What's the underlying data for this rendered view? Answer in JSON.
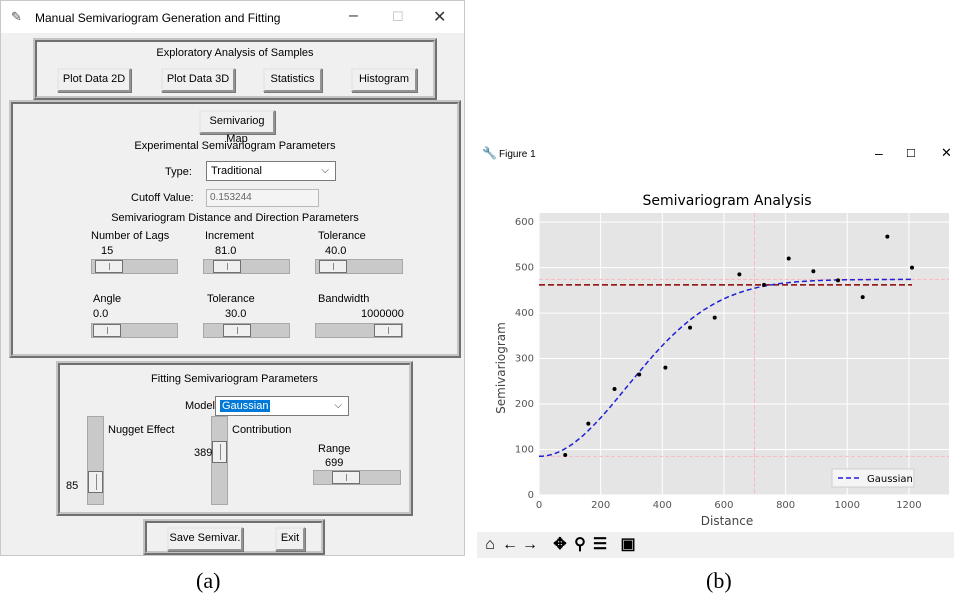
{
  "window_a": {
    "title": "Manual Semivariogram Generation and Fitting",
    "exploratory": {
      "heading": "Exploratory Analysis of Samples",
      "plot2d": "Plot Data 2D",
      "plot3d": "Plot Data 3D",
      "statistics": "Statistics",
      "histogram": "Histogram"
    },
    "experimental": {
      "map_button": "Semivariog Map",
      "heading": "Experimental Semivariogram Parameters",
      "type_label": "Type:",
      "type_value": "Traditional",
      "cutoff_label": "Cutoff Value:",
      "cutoff_value": "0.153244",
      "distdir_heading": "Semivariogram Distance and Direction Parameters",
      "lags_label": "Number of Lags",
      "lags_value": "15",
      "inc_label": "Increment",
      "inc_value": "81.0",
      "tol_label": "Tolerance",
      "tol_value": "40.0",
      "angle_label": "Angle",
      "angle_value": "0.0",
      "angtol_label": "Tolerance",
      "angtol_value": "30.0",
      "bw_label": "Bandwidth",
      "bw_value": "1000000"
    },
    "fitting": {
      "heading": "Fitting Semivariogram Parameters",
      "model_label": "Model:",
      "model_value": "Gaussian",
      "nugget_label": "Nugget Effect",
      "nugget_value": "85",
      "contrib_label": "Contribution",
      "contrib_value": "389",
      "range_label": "Range",
      "range_value": "699"
    },
    "save_button": "Save Semivar.",
    "exit_button": "Exit"
  },
  "window_b": {
    "title": "Figure 1"
  },
  "captions": {
    "a": "(a)",
    "b": "(b)"
  },
  "icons": [
    "feather-icon",
    "figure-icon",
    "home-icon",
    "back-icon",
    "forward-icon",
    "pan-icon",
    "zoom-icon",
    "configure-icon",
    "save-icon"
  ],
  "colors": {
    "model_line": "#1f1fd6",
    "sill_line": "#8b0000",
    "ref_line": "#ffb6c1",
    "plot_bg": "#e5e5e5"
  },
  "chart_data": {
    "type": "scatter",
    "title": "Semivariogram Analysis",
    "xlabel": "Distance",
    "ylabel": "Semivariogram",
    "xlim": [
      0,
      1330
    ],
    "ylim": [
      0,
      620
    ],
    "xticks": [
      0,
      200,
      400,
      600,
      800,
      1000,
      1200
    ],
    "yticks": [
      0,
      100,
      200,
      300,
      400,
      500,
      600
    ],
    "grid": true,
    "legend": "bottom-right",
    "series": [
      {
        "name": "",
        "kind": "points",
        "x": [
          85,
          160,
          245,
          325,
          410,
          490,
          570,
          650,
          730,
          810,
          890,
          970,
          1050,
          1130,
          1210
        ],
        "y": [
          88,
          157,
          233,
          265,
          280,
          368,
          390,
          485,
          462,
          520,
          492,
          472,
          435,
          568,
          500
        ]
      },
      {
        "name": "Gaussian",
        "kind": "model",
        "nugget": 85,
        "contribution": 389,
        "range": 699,
        "x_range": [
          0,
          1210
        ]
      }
    ],
    "reference_lines": {
      "sill": 462,
      "range": 699,
      "nugget": 85
    }
  }
}
